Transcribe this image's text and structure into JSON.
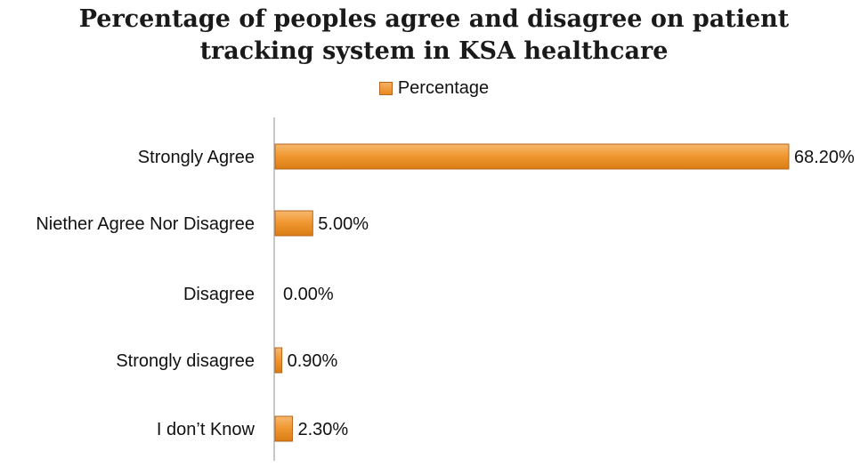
{
  "chart_data": {
    "type": "bar",
    "orientation": "horizontal",
    "title": "Percentage of peoples agree and disagree on patient tracking system in KSA healthcare",
    "title_lines": [
      "Percentage of peoples agree and disagree on patient",
      "tracking system in KSA healthcare"
    ],
    "categories": [
      "Strongly Agree",
      "Niether Agree Nor Disagree",
      "Disagree",
      "Strongly disagree",
      "I don’t Know"
    ],
    "series": [
      {
        "name": "Percentage",
        "values": [
          68.2,
          5.0,
          0.0,
          0.9,
          2.3
        ]
      }
    ],
    "data_labels": [
      "68.20%",
      "5.00%",
      "0.00%",
      "0.90%",
      "2.30%"
    ],
    "xlim": [
      0,
      70
    ],
    "grid": false,
    "legend_position": "top",
    "bar_color": "#f0962e"
  }
}
